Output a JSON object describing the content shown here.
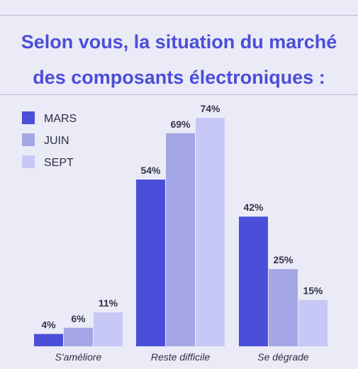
{
  "title": {
    "line1": "Selon vous, la situation du marché",
    "line2": "des composants électroniques :"
  },
  "colors": {
    "accent": "#4b4ed8",
    "background": "#ebebf7",
    "series": [
      "#4b4ed8",
      "#a4a6e6",
      "#c7c8f5"
    ]
  },
  "chart_data": {
    "type": "bar",
    "title": "Selon vous, la situation du marché des composants électroniques :",
    "categories": [
      "S'améliore",
      "Reste difficile",
      "Se dégrade"
    ],
    "series": [
      {
        "name": "MARS",
        "values": [
          4,
          54,
          42
        ],
        "labels": [
          "4%",
          "54%",
          "42%"
        ]
      },
      {
        "name": "JUIN",
        "values": [
          6,
          69,
          25
        ],
        "labels": [
          "6%",
          "69%",
          "25%"
        ]
      },
      {
        "name": "SEPT",
        "values": [
          11,
          74,
          15
        ],
        "labels": [
          "11%",
          "74%",
          "15%"
        ]
      }
    ],
    "ylim": [
      0,
      100
    ],
    "grid": false,
    "legend_position": "top-left",
    "xlabel": "",
    "ylabel": ""
  }
}
